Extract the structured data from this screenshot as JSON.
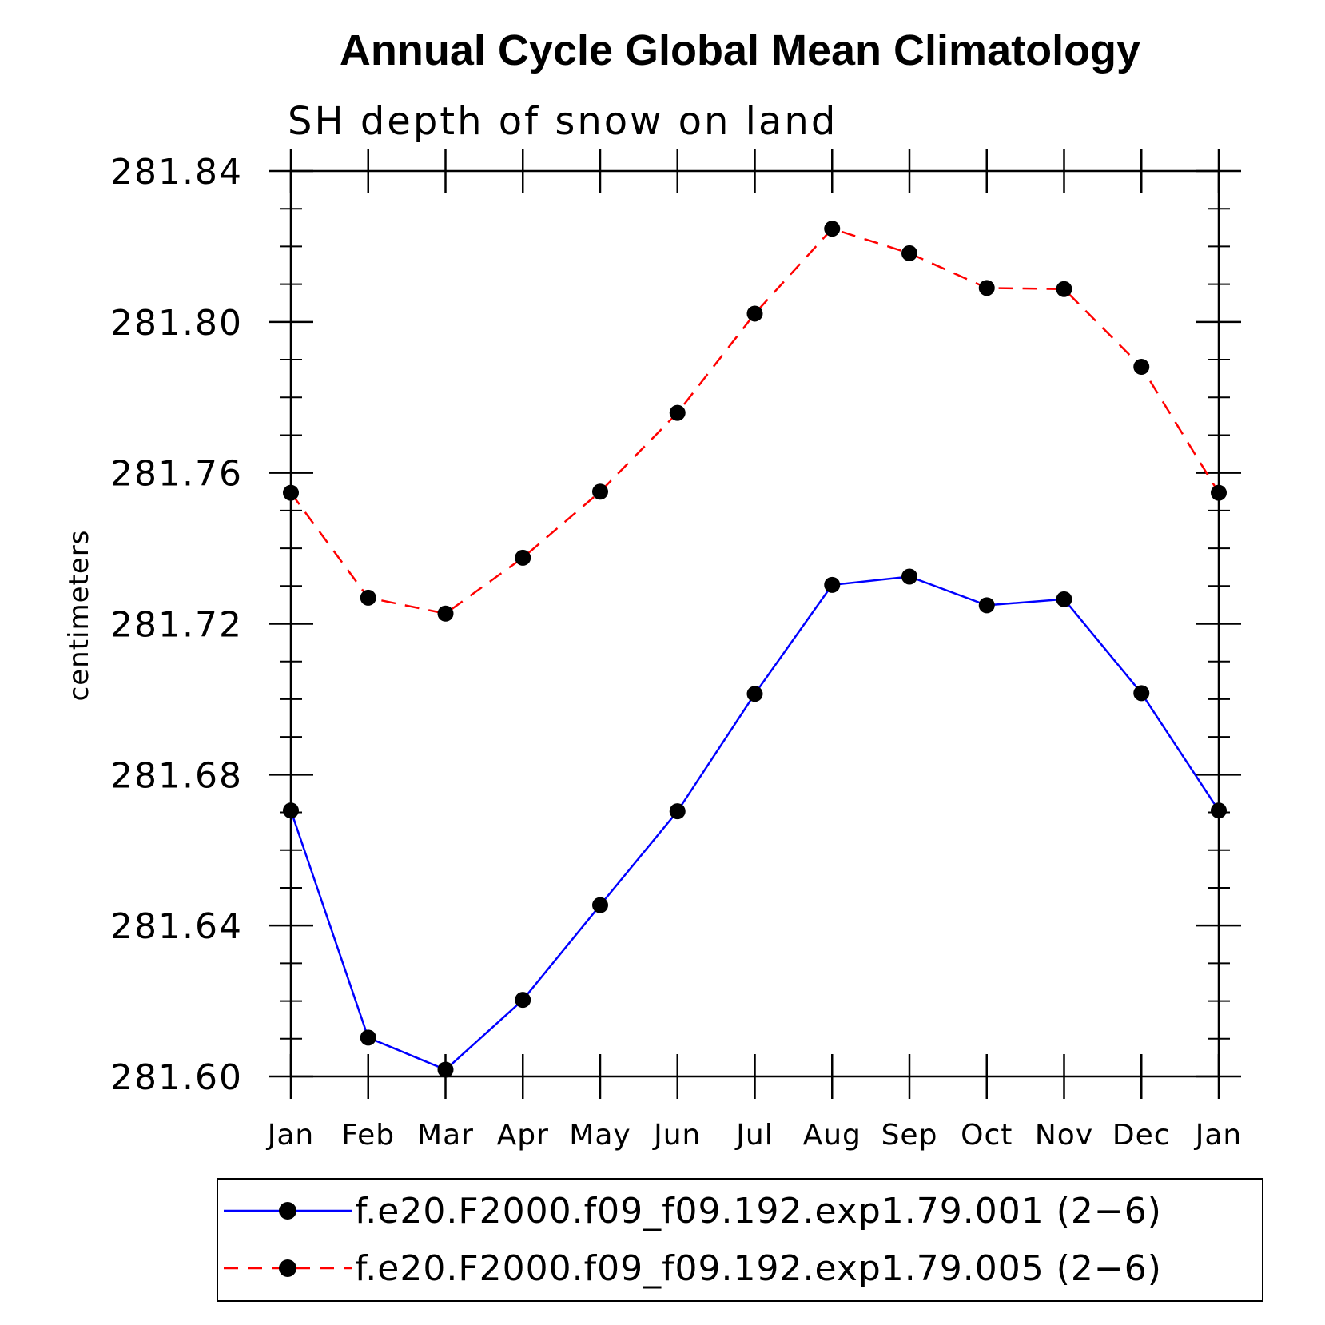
{
  "chart_data": {
    "type": "line",
    "title": "Annual Cycle Global Mean Climatology",
    "subtitle": "SH depth of snow on land",
    "xlabel": "",
    "ylabel": "centimeters",
    "categories": [
      "Jan",
      "Feb",
      "Mar",
      "Apr",
      "May",
      "Jun",
      "Jul",
      "Aug",
      "Sep",
      "Oct",
      "Nov",
      "Dec",
      "Jan"
    ],
    "ylim": [
      281.6,
      281.84
    ],
    "yticks": [
      "281.84",
      "281.80",
      "281.76",
      "281.72",
      "281.68",
      "281.64",
      "281.60"
    ],
    "ytick_values": [
      281.84,
      281.8,
      281.76,
      281.72,
      281.68,
      281.64,
      281.6
    ],
    "yminor_step": 0.01,
    "series": [
      {
        "name": "f.e20.F2000.f09_f09.192.exp1.79.001 (2−6)",
        "color": "#0000ff",
        "dash": "solid",
        "values": [
          281.6705,
          281.6103,
          281.6018,
          281.6203,
          281.6454,
          281.6703,
          281.7014,
          281.7303,
          281.7325,
          281.7249,
          281.7265,
          281.7016,
          281.6705
        ]
      },
      {
        "name": "f.e20.F2000.f09_f09.192.exp1.79.005 (2−6)",
        "color": "#ff0000",
        "dash": "dashed",
        "values": [
          281.7547,
          281.7269,
          281.7227,
          281.7375,
          281.755,
          281.7759,
          281.8022,
          281.8247,
          281.8182,
          281.809,
          281.8087,
          281.7881,
          281.7547
        ]
      }
    ],
    "legend_position": "bottom",
    "marker_color": "#000000",
    "grid": false
  }
}
